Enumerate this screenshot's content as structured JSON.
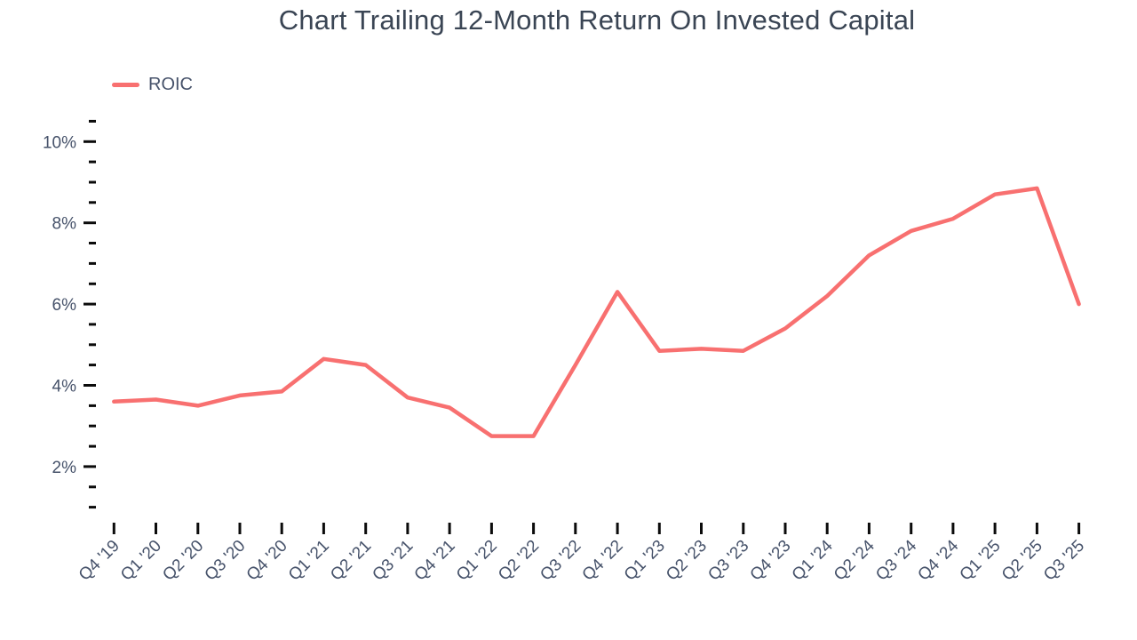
{
  "chart_data": {
    "type": "line",
    "title": "Chart Trailing 12-Month Return On Invested Capital",
    "xlabel": "",
    "ylabel": "",
    "categories": [
      "Q4 '19",
      "Q1 '20",
      "Q2 '20",
      "Q3 '20",
      "Q4 '20",
      "Q1 '21",
      "Q2 '21",
      "Q3 '21",
      "Q4 '21",
      "Q1 '22",
      "Q2 '22",
      "Q3 '22",
      "Q4 '22",
      "Q1 '23",
      "Q2 '23",
      "Q3 '23",
      "Q4 '23",
      "Q1 '24",
      "Q2 '24",
      "Q3 '24",
      "Q4 '24",
      "Q1 '25",
      "Q2 '25",
      "Q3 '25"
    ],
    "series": [
      {
        "name": "ROIC",
        "color": "#F87070",
        "values": [
          3.6,
          3.65,
          3.5,
          3.75,
          3.85,
          4.65,
          4.5,
          3.7,
          3.45,
          2.75,
          2.75,
          4.5,
          6.3,
          4.85,
          4.9,
          4.85,
          5.4,
          6.2,
          7.2,
          7.8,
          8.1,
          8.7,
          8.85,
          6.0
        ]
      }
    ],
    "ylim": [
      1,
      10.5
    ],
    "y_major_ticks": [
      2,
      4,
      6,
      8,
      10
    ],
    "y_tick_labels": [
      "2%",
      "4%",
      "6%",
      "8%",
      "10%"
    ],
    "y_minor_tick_step": 0.5,
    "x_tick_rotation_deg": -45,
    "grid": false,
    "legend_position": "top-left",
    "colors": {
      "line": "#F87070",
      "title_text": "#3A4554",
      "axis_label_text": "#46526A",
      "tick": "#0B0B0B",
      "background": "#FFFFFF"
    }
  }
}
